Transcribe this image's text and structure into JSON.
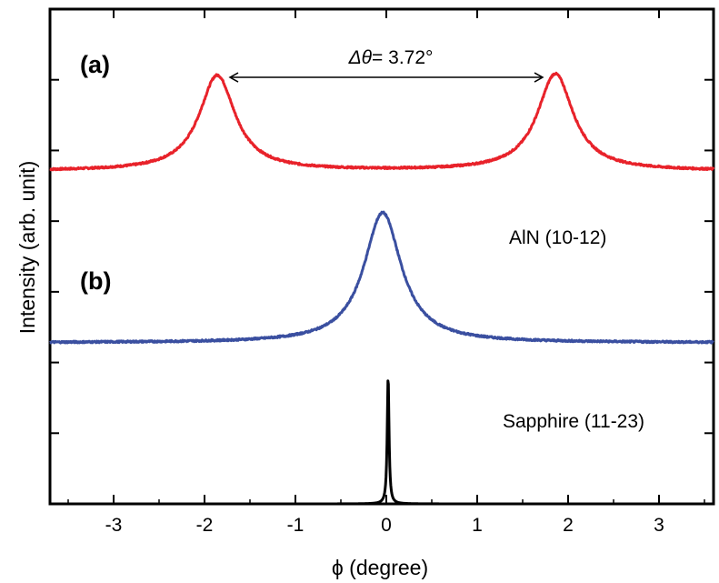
{
  "chart_data": {
    "type": "line",
    "xlabel": "ϕ (degree)",
    "ylabel": "Intensity (arb. unit)",
    "xlim": [
      -3.7,
      3.6
    ],
    "xticks": [
      -3,
      -2,
      -1,
      0,
      1,
      2,
      3
    ],
    "xtick_labels": [
      "-3",
      "-2",
      "-1",
      "0",
      "1",
      "2",
      "3"
    ],
    "y_units": "arbitrary",
    "ylim": [
      0,
      7
    ],
    "grid": false,
    "series": [
      {
        "name": "(a)",
        "color": "#e8222a",
        "baseline": 4.71,
        "peaks": [
          {
            "center": -1.86,
            "height": 1.35,
            "width": 0.24
          },
          {
            "center": 1.86,
            "height": 1.37,
            "width": 0.24
          }
        ]
      },
      {
        "name": "(b)",
        "color": "#3a4fa0",
        "baseline": 2.28,
        "peaks": [
          {
            "center": -0.04,
            "height": 1.84,
            "width": 0.25
          }
        ]
      },
      {
        "name": "Sapphire (11-23)",
        "color": "#000000",
        "baseline": 0.0,
        "peaks": [
          {
            "center": 0.02,
            "height": 1.8,
            "width": 0.012
          }
        ]
      }
    ],
    "annotations": {
      "panel_a": "(a)",
      "panel_b": "(b)",
      "aln_label": "AlN (10-12)",
      "sapphire_label": "Sapphire (11-23)",
      "delta_theta_symbol": "Δθ",
      "delta_theta_value": "= 3.72°",
      "delta_theta_from": -1.86,
      "delta_theta_to": 1.86
    }
  }
}
